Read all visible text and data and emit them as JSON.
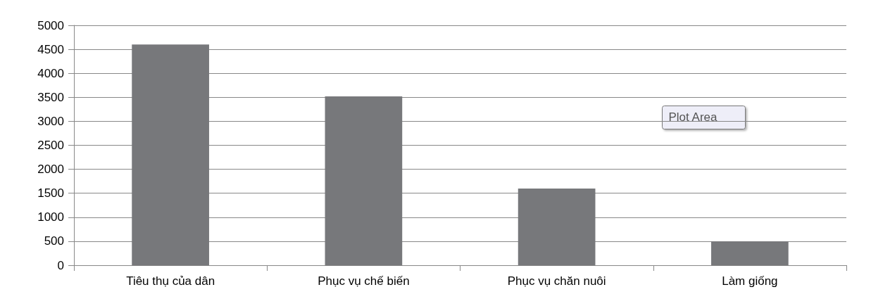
{
  "chart_data": {
    "type": "bar",
    "categories": [
      "Tiêu thụ của dân",
      "Phục vụ chế biến",
      "Phục vụ chăn nuôi",
      "Làm giống"
    ],
    "values": [
      4600,
      3520,
      1600,
      500
    ],
    "color": "#77787b",
    "ylim": [
      0,
      5000
    ],
    "yticks": [
      0,
      500,
      1000,
      1500,
      2000,
      2500,
      3000,
      3500,
      4000,
      4500,
      5000
    ],
    "grid": "y",
    "annotations": [
      "Plot Area"
    ]
  }
}
